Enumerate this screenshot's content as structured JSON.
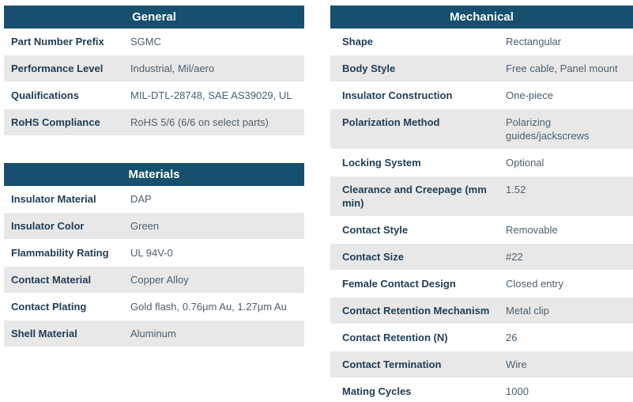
{
  "theme": {
    "page_bg": "#ffffff",
    "header_bg": "#16506e",
    "header_text": "#ffffff",
    "label_color": "#1f3c55",
    "value_color": "#4d6070",
    "row_bg": "#ffffff",
    "row_alt_bg": "#e8e8e8"
  },
  "tables": [
    {
      "title": "General",
      "rows": [
        {
          "label": "Part Number Prefix",
          "value": "SGMC"
        },
        {
          "label": "Performance Level",
          "value": "Industrial, Mil/aero"
        },
        {
          "label": "Qualifications",
          "value": "MIL-DTL-28748, SAE AS39029, UL"
        },
        {
          "label": "RoHS Compliance",
          "value": "RoHS 5/6 (6/6 on select parts)"
        }
      ]
    },
    {
      "title": "Materials",
      "rows": [
        {
          "label": "Insulator Material",
          "value": "DAP"
        },
        {
          "label": "Insulator Color",
          "value": "Green"
        },
        {
          "label": "Flammability Rating",
          "value": "UL 94V-0"
        },
        {
          "label": "Contact Material",
          "value": "Copper Alloy"
        },
        {
          "label": "Contact Plating",
          "value": "Gold flash, 0.76μm Au, 1.27μm Au"
        },
        {
          "label": "Shell Material",
          "value": "Aluminum"
        }
      ]
    },
    {
      "title": "Mechanical",
      "rows": [
        {
          "label": "Shape",
          "value": "Rectangular"
        },
        {
          "label": "Body Style",
          "value": "Free cable, Panel mount"
        },
        {
          "label": "Insulator Construction",
          "value": "One-piece"
        },
        {
          "label": "Polarization Method",
          "value": "Polarizing guides/jackscrews"
        },
        {
          "label": "Locking System",
          "value": "Optional"
        },
        {
          "label": "Clearance and Creepage (mm min)",
          "value": "1.52"
        },
        {
          "label": "Contact Style",
          "value": "Removable"
        },
        {
          "label": "Contact Size",
          "value": "#22"
        },
        {
          "label": "Female Contact Design",
          "value": "Closed entry"
        },
        {
          "label": "Contact Retention Mechanism",
          "value": "Metal clip"
        },
        {
          "label": "Contact Retention (N)",
          "value": "26"
        },
        {
          "label": "Contact Termination",
          "value": "Wire"
        },
        {
          "label": "Mating Cycles",
          "value": "1000"
        }
      ]
    }
  ]
}
